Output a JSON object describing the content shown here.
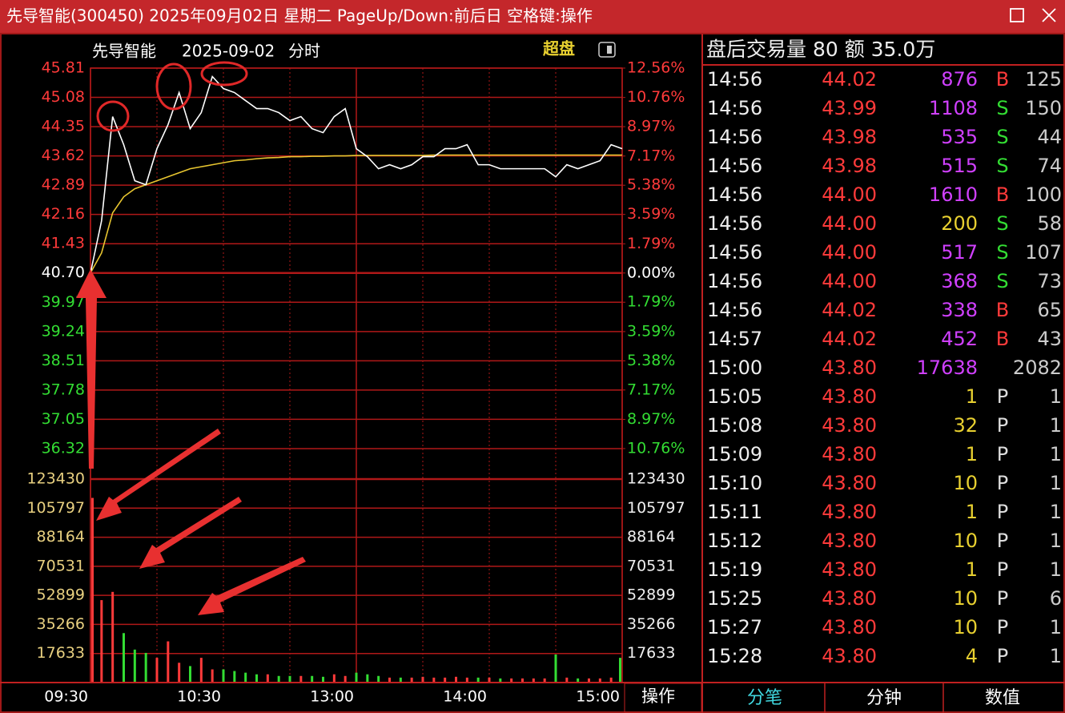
{
  "window": {
    "title": "先导智能(300450) 2025年09月02日 星期二 PageUp/Down:前后日 空格键:操作"
  },
  "chart_header": {
    "name": "先导智能",
    "date": "2025-09-02",
    "mode": "分时",
    "tag": "超盘"
  },
  "action": "操作",
  "chart_data": [
    {
      "type": "line",
      "x": [
        0,
        5,
        10,
        15,
        20,
        25,
        30,
        35,
        40,
        45,
        50,
        55,
        60,
        65,
        70,
        75,
        80,
        85,
        90,
        95,
        100,
        105,
        110,
        115,
        120,
        125,
        130,
        135,
        140,
        145,
        150,
        155,
        160,
        165,
        170,
        175,
        180,
        185,
        190,
        195,
        200,
        205,
        210,
        215,
        220,
        225,
        230,
        235,
        240
      ],
      "xlim": [
        0,
        240
      ],
      "xticks": [
        {
          "value": 0,
          "label": "09:30"
        },
        {
          "value": 60,
          "label": "10:30"
        },
        {
          "value": 120,
          "label": "13:00"
        },
        {
          "value": 180,
          "label": "14:00"
        },
        {
          "value": 240,
          "label": "15:00"
        }
      ],
      "ylim": [
        35.56,
        45.81
      ],
      "yticks": [
        45.81,
        45.08,
        44.35,
        43.62,
        42.89,
        42.16,
        41.43,
        {
          "value": 40.7,
          "label": "40.70"
        },
        39.97,
        39.24,
        38.51,
        37.78,
        37.05,
        36.32
      ],
      "y2lim": [
        -12.63,
        12.56
      ],
      "y2ticks": [
        {
          "value": 12.56,
          "label": "12.56%"
        },
        {
          "value": 10.76,
          "label": "10.76%"
        },
        {
          "value": 8.97,
          "label": "8.97%"
        },
        {
          "value": 7.17,
          "label": "7.17%"
        },
        {
          "value": 5.38,
          "label": "5.38%"
        },
        {
          "value": 3.59,
          "label": "3.59%"
        },
        {
          "value": 1.79,
          "label": "1.79%"
        },
        {
          "value": 0,
          "label": "0.00%"
        },
        {
          "value": -1.79,
          "label": "1.79%"
        },
        {
          "value": -3.59,
          "label": "3.59%"
        },
        {
          "value": -5.38,
          "label": "5.38%"
        },
        {
          "value": -7.17,
          "label": "7.17%"
        },
        {
          "value": -8.97,
          "label": "8.97%"
        },
        {
          "value": -10.76,
          "label": "10.76%"
        }
      ],
      "grid": true,
      "series": [
        {
          "color": "#ffffff",
          "values": [
            40.7,
            42.0,
            44.6,
            43.9,
            43.0,
            42.9,
            43.8,
            44.4,
            45.2,
            44.3,
            44.7,
            45.6,
            45.3,
            45.2,
            45.0,
            44.8,
            44.8,
            44.7,
            44.5,
            44.6,
            44.3,
            44.2,
            44.6,
            44.8,
            43.8,
            43.6,
            43.3,
            43.4,
            43.3,
            43.4,
            43.6,
            43.6,
            43.8,
            43.8,
            43.9,
            43.4,
            43.4,
            43.3,
            43.3,
            43.3,
            43.3,
            43.3,
            43.1,
            43.4,
            43.3,
            43.4,
            43.5,
            43.9,
            43.8
          ]
        },
        {
          "color": "#e8c630",
          "values": [
            40.7,
            41.2,
            42.2,
            42.6,
            42.8,
            42.9,
            43.0,
            43.1,
            43.2,
            43.3,
            43.35,
            43.4,
            43.45,
            43.5,
            43.52,
            43.55,
            43.57,
            43.58,
            43.6,
            43.6,
            43.61,
            43.61,
            43.62,
            43.62,
            43.63,
            43.63,
            43.63,
            43.63,
            43.63,
            43.63,
            43.63,
            43.64,
            43.64,
            43.64,
            43.64,
            43.64,
            43.64,
            43.64,
            43.64,
            43.64,
            43.64,
            43.64,
            43.64,
            43.64,
            43.64,
            43.64,
            43.64,
            43.64,
            43.64
          ]
        }
      ],
      "up_color": "#ff3a3a",
      "flat_color": "#ffffff",
      "down_color": "#33dd33"
    },
    {
      "type": "bar",
      "x": [
        0,
        5,
        10,
        15,
        20,
        25,
        30,
        35,
        40,
        45,
        50,
        55,
        60,
        65,
        70,
        75,
        80,
        85,
        90,
        95,
        100,
        105,
        110,
        115,
        120,
        125,
        130,
        135,
        140,
        145,
        150,
        155,
        160,
        165,
        170,
        175,
        180,
        185,
        190,
        195,
        200,
        205,
        210,
        215,
        220,
        225,
        230,
        235,
        240
      ],
      "xlim": [
        0,
        240
      ],
      "values": [
        112000,
        50000,
        55000,
        30000,
        20000,
        18000,
        15000,
        25000,
        12000,
        10000,
        15000,
        8000,
        8000,
        7000,
        6000,
        5000,
        5000,
        4000,
        4000,
        4000,
        4000,
        3500,
        5000,
        4000,
        6000,
        5000,
        4000,
        3000,
        3000,
        3000,
        3500,
        3000,
        3000,
        3500,
        3000,
        3000,
        3000,
        2500,
        2500,
        2500,
        2500,
        2500,
        17000,
        3000,
        2500,
        2500,
        2500,
        3000,
        15000
      ],
      "ylim": [
        0,
        123430
      ],
      "yticks": [
        123430,
        105797,
        88164,
        70531,
        52899,
        35266,
        17633
      ],
      "grid": true,
      "up_color": "#ff3a3a",
      "down_color": "#33dd33"
    }
  ],
  "trades": {
    "header": "盘后交易量 80 额 35.0万",
    "rows": [
      {
        "time": "14:56",
        "price": "44.02",
        "volume": "876",
        "volume_color": "#d040ff",
        "flag": "B",
        "flag_color": "#ff3a3a",
        "count": "125"
      },
      {
        "time": "14:56",
        "price": "43.99",
        "volume": "1108",
        "volume_color": "#d040ff",
        "flag": "S",
        "flag_color": "#33dd33",
        "count": "150"
      },
      {
        "time": "14:56",
        "price": "43.98",
        "volume": "535",
        "volume_color": "#d040ff",
        "flag": "S",
        "flag_color": "#33dd33",
        "count": "44"
      },
      {
        "time": "14:56",
        "price": "43.98",
        "volume": "515",
        "volume_color": "#d040ff",
        "flag": "S",
        "flag_color": "#33dd33",
        "count": "74"
      },
      {
        "time": "14:56",
        "price": "44.00",
        "volume": "1610",
        "volume_color": "#d040ff",
        "flag": "B",
        "flag_color": "#ff3a3a",
        "count": "100"
      },
      {
        "time": "14:56",
        "price": "44.00",
        "volume": "200",
        "volume_color": "#e8d030",
        "flag": "S",
        "flag_color": "#33dd33",
        "count": "58"
      },
      {
        "time": "14:56",
        "price": "44.00",
        "volume": "517",
        "volume_color": "#d040ff",
        "flag": "S",
        "flag_color": "#33dd33",
        "count": "107"
      },
      {
        "time": "14:56",
        "price": "44.00",
        "volume": "368",
        "volume_color": "#d040ff",
        "flag": "S",
        "flag_color": "#33dd33",
        "count": "73"
      },
      {
        "time": "14:56",
        "price": "44.02",
        "volume": "338",
        "volume_color": "#d040ff",
        "flag": "B",
        "flag_color": "#ff3a3a",
        "count": "65"
      },
      {
        "time": "14:57",
        "price": "44.02",
        "volume": "452",
        "volume_color": "#d040ff",
        "flag": "B",
        "flag_color": "#ff3a3a",
        "count": "43"
      },
      {
        "time": "15:00",
        "price": "43.80",
        "volume": "17638",
        "volume_color": "#d040ff",
        "flag": null,
        "flag_color": null,
        "count": "2082"
      },
      {
        "time": "15:05",
        "price": "43.80",
        "volume": "1",
        "volume_color": "#e8d030",
        "flag": "P",
        "flag_color": "#dddddd",
        "count": "1"
      },
      {
        "time": "15:08",
        "price": "43.80",
        "volume": "32",
        "volume_color": "#e8d030",
        "flag": "P",
        "flag_color": "#dddddd",
        "count": "1"
      },
      {
        "time": "15:09",
        "price": "43.80",
        "volume": "1",
        "volume_color": "#e8d030",
        "flag": "P",
        "flag_color": "#dddddd",
        "count": "1"
      },
      {
        "time": "15:10",
        "price": "43.80",
        "volume": "10",
        "volume_color": "#e8d030",
        "flag": "P",
        "flag_color": "#dddddd",
        "count": "1"
      },
      {
        "time": "15:11",
        "price": "43.80",
        "volume": "1",
        "volume_color": "#e8d030",
        "flag": "P",
        "flag_color": "#dddddd",
        "count": "1"
      },
      {
        "time": "15:12",
        "price": "43.80",
        "volume": "10",
        "volume_color": "#e8d030",
        "flag": "P",
        "flag_color": "#dddddd",
        "count": "1"
      },
      {
        "time": "15:19",
        "price": "43.80",
        "volume": "1",
        "volume_color": "#e8d030",
        "flag": "P",
        "flag_color": "#dddddd",
        "count": "1"
      },
      {
        "time": "15:25",
        "price": "43.80",
        "volume": "10",
        "volume_color": "#e8d030",
        "flag": "P",
        "flag_color": "#dddddd",
        "count": "6"
      },
      {
        "time": "15:27",
        "price": "43.80",
        "volume": "10",
        "volume_color": "#e8d030",
        "flag": "P",
        "flag_color": "#dddddd",
        "count": "1"
      },
      {
        "time": "15:28",
        "price": "43.80",
        "volume": "4",
        "volume_color": "#e8d030",
        "flag": "P",
        "flag_color": "#dddddd",
        "count": "1"
      }
    ]
  },
  "tabs": [
    {
      "label": "分笔",
      "color": "#40d8e0"
    },
    {
      "label": "分钟",
      "color": "#ffffff"
    },
    {
      "label": "数值",
      "color": "#ffffff"
    }
  ]
}
